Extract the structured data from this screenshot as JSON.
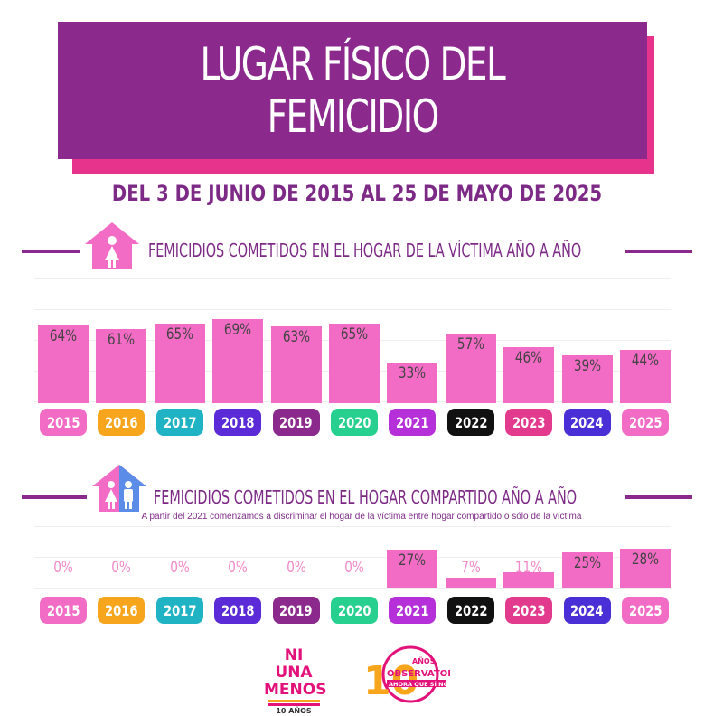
{
  "title": {
    "line1": "LUGAR FÍSICO DEL",
    "line2": "FEMICIDIO"
  },
  "subtitle": "DEL 3 DE JUNIO DE 2015 AL 25 DE MAYO DE 2025",
  "colors": {
    "purple": "#8b2a8c",
    "pink": "#e8338d",
    "bar": "#f26bc4",
    "pills": [
      "#f26bc4",
      "#f7a51c",
      "#1fb3c4",
      "#5a2bd6",
      "#8b2a8c",
      "#27d08f",
      "#b530d8",
      "#111111",
      "#e23b8e",
      "#4a2ed6",
      "#f26bc4"
    ]
  },
  "icons": {
    "section1": "house-woman-icon",
    "section2": "house-woman-man-icon"
  },
  "chart_data": [
    {
      "type": "bar",
      "title": "FEMICIDIOS COMETIDOS EN EL HOGAR DE LA VÍCTIMA AÑO A AÑO",
      "categories": [
        "2015",
        "2016",
        "2017",
        "2018",
        "2019",
        "2020",
        "2021",
        "2022",
        "2023",
        "2024",
        "2025"
      ],
      "values": [
        64,
        61,
        65,
        69,
        63,
        65,
        33,
        57,
        46,
        39,
        44
      ],
      "labels": [
        "64%",
        "61%",
        "65%",
        "69%",
        "63%",
        "65%",
        "33%",
        "57%",
        "46%",
        "39%",
        "44%"
      ],
      "ylim": [
        0,
        100
      ]
    },
    {
      "type": "bar",
      "title": "FEMICIDIOS COMETIDOS EN EL HOGAR COMPARTIDO AÑO A AÑO",
      "note": "A partir del 2021 comenzamos a discriminar el hogar de la víctima entre hogar compartido o sólo de la víctima",
      "categories": [
        "2015",
        "2016",
        "2017",
        "2018",
        "2019",
        "2020",
        "2021",
        "2022",
        "2023",
        "2024",
        "2025"
      ],
      "values": [
        0,
        0,
        0,
        0,
        0,
        0,
        27,
        7,
        11,
        25,
        28
      ],
      "labels": [
        "0%",
        "0%",
        "0%",
        "0%",
        "0%",
        "0%",
        "27%",
        "7%",
        "11%",
        "25%",
        "28%"
      ],
      "ylim": [
        0,
        100
      ]
    }
  ],
  "logos": {
    "niunamenos": {
      "line1": "NI UNA",
      "line2": "MENOS",
      "tagline": "10 AÑOS"
    },
    "observatorio": {
      "number": "10",
      "anos": "AÑOS",
      "name": "OBSERVATORIO",
      "tagline": "AHORA QUE SÍ NOS VEN"
    }
  }
}
